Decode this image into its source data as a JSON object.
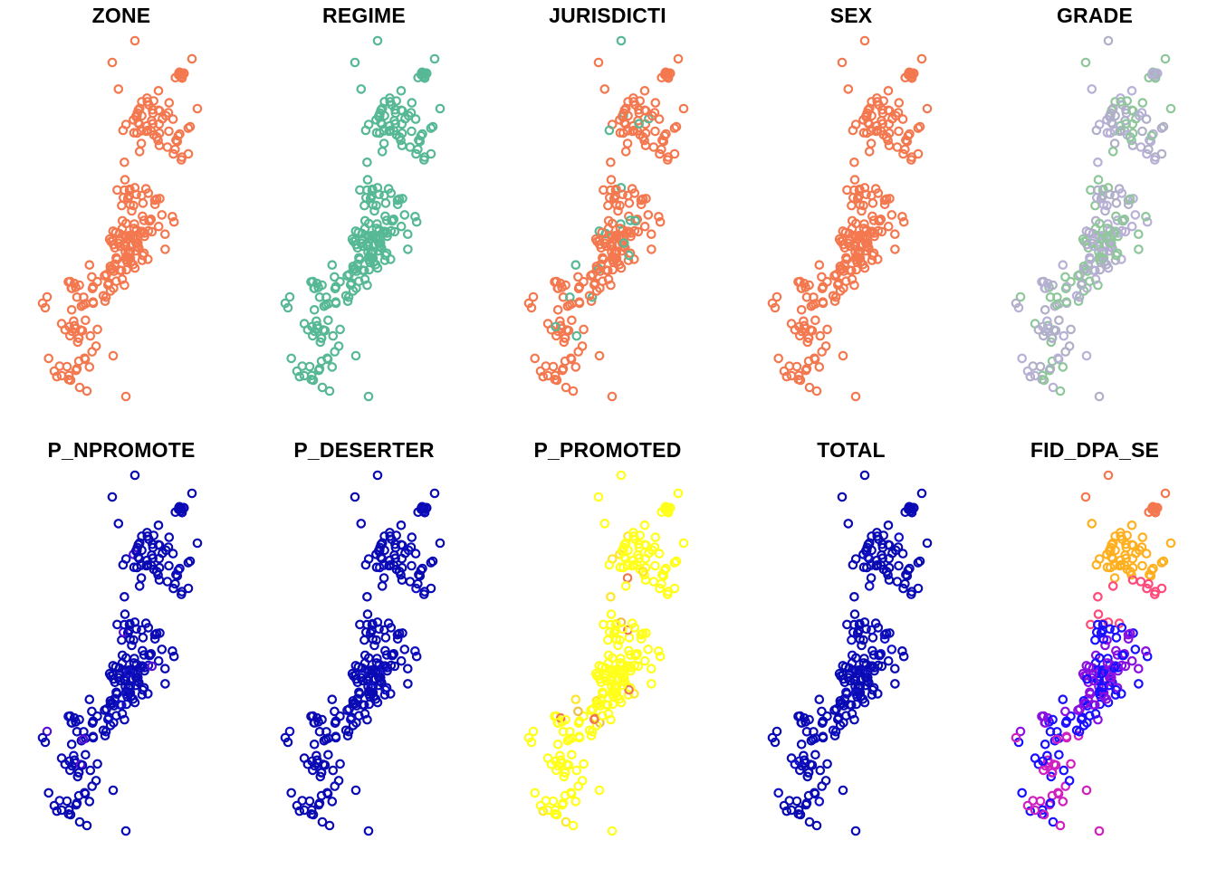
{
  "figure": {
    "panels": [
      {
        "title": "ZONE",
        "palette": [
          "#f4784f"
        ],
        "mix": "single"
      },
      {
        "title": "REGIME",
        "palette": [
          "#56b895"
        ],
        "mix": "single"
      },
      {
        "title": "JURISDICTI",
        "palette": [
          "#f4784f",
          "#56b895"
        ],
        "mix": "mostly-first"
      },
      {
        "title": "SEX",
        "palette": [
          "#f4784f"
        ],
        "mix": "single"
      },
      {
        "title": "GRADE",
        "palette": [
          "#afafc8",
          "#8fc79a",
          "#b8b0d6"
        ],
        "mix": "random"
      },
      {
        "title": "P_NPROMOTE",
        "palette": [
          "#0a0ab4",
          "#1010c8",
          "#5a10d8"
        ],
        "mix": "mostly-first"
      },
      {
        "title": "P_DESERTER",
        "palette": [
          "#0a0ab4",
          "#1010c8"
        ],
        "mix": "mostly-first"
      },
      {
        "title": "P_PROMOTED",
        "palette": [
          "#ffff1a",
          "#ffe62a",
          "#f0c040",
          "#f07850"
        ],
        "mix": "mostly-first"
      },
      {
        "title": "TOTAL",
        "palette": [
          "#0a0ab4",
          "#1010c8"
        ],
        "mix": "mostly-first"
      },
      {
        "title": "FID_DPA_SE",
        "palette": [
          "#f4784f",
          "#ffb020",
          "#ff4a7a",
          "#1a10ff",
          "#8a10e0",
          "#d020c0"
        ],
        "mix": "by-latitude"
      }
    ]
  }
}
